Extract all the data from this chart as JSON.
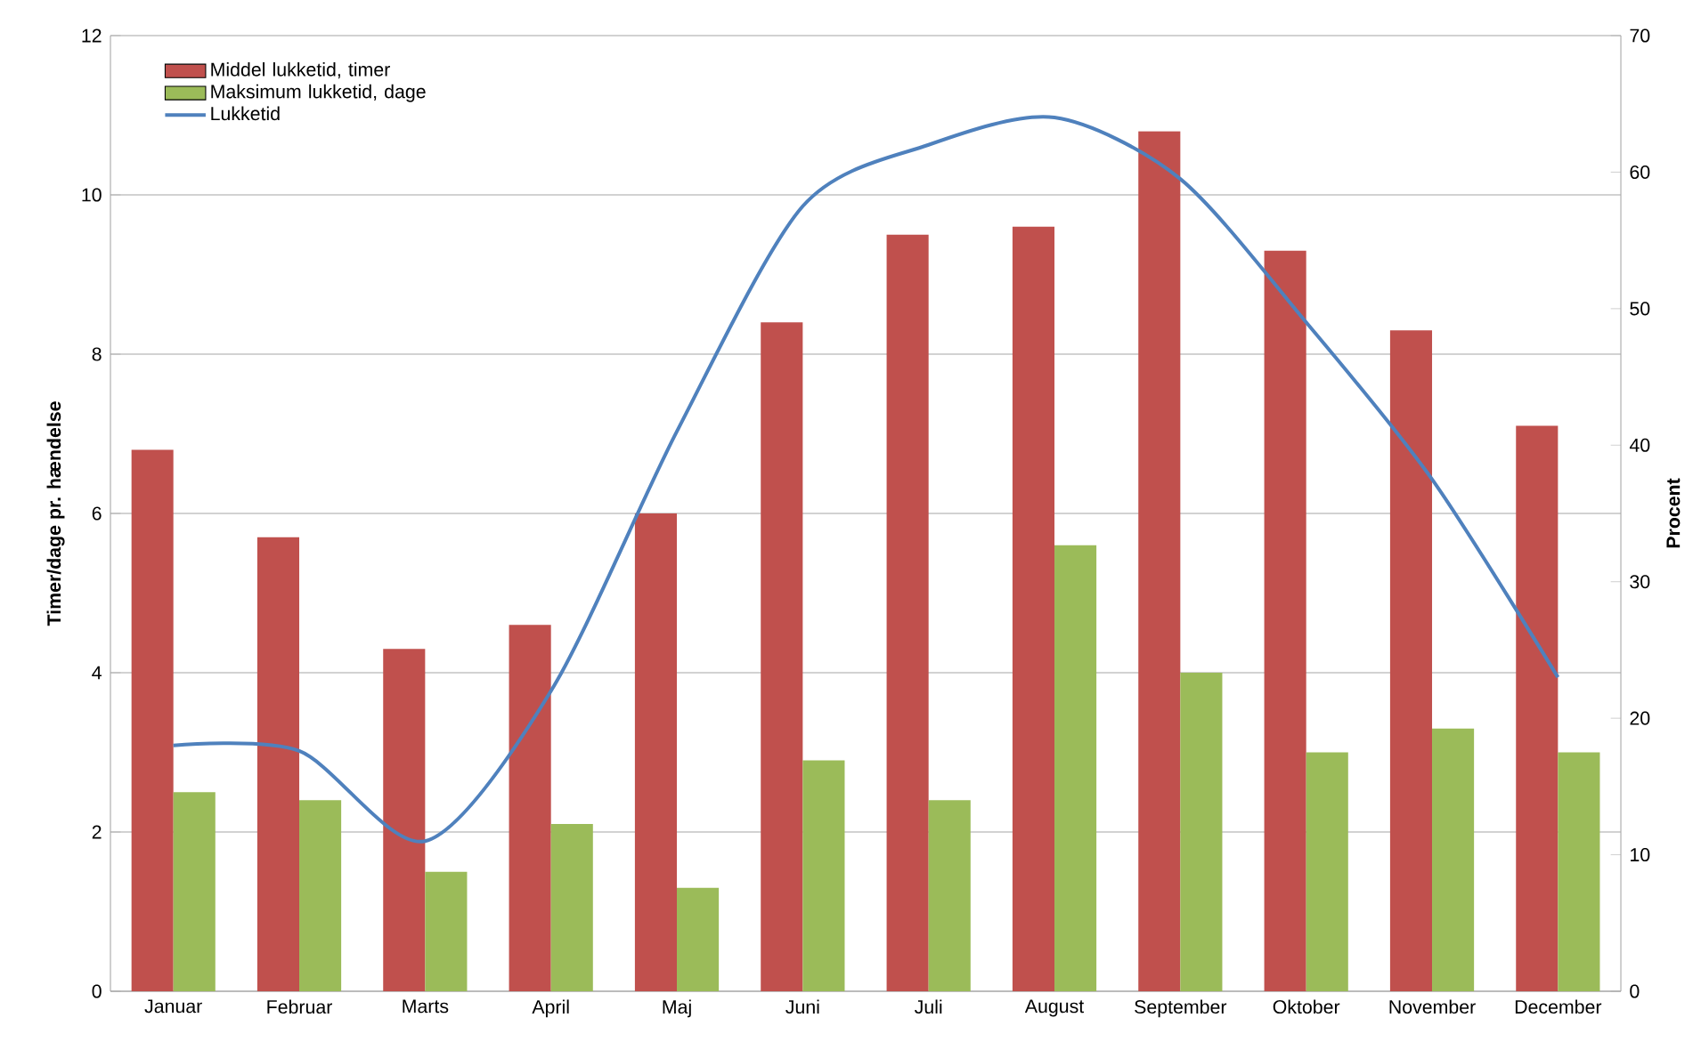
{
  "chart_data": {
    "type": "bar",
    "ylabel": "Timer/dage pr. hændelse",
    "y2label": "Procent",
    "categories": [
      "Januar",
      "Februar",
      "Marts",
      "April",
      "Maj",
      "Juni",
      "Juli",
      "August",
      "September",
      "Oktober",
      "November",
      "December"
    ],
    "series": [
      {
        "name": "Middel lukketid, timer",
        "color": "#c0504d",
        "values": [
          6.8,
          5.7,
          4.3,
          4.6,
          6.0,
          8.4,
          9.5,
          9.6,
          10.8,
          9.3,
          8.3,
          7.1
        ]
      },
      {
        "name": "Maksimum lukketid, dage",
        "color": "#9bbb59",
        "values": [
          2.5,
          2.4,
          1.5,
          2.1,
          1.3,
          2.9,
          2.4,
          5.6,
          4.0,
          3.0,
          3.3,
          3.0
        ]
      },
      {
        "name": "Lukketid",
        "type": "line",
        "axis": "y2",
        "color": "#4f81bd",
        "line_style": "solid",
        "values": [
          18,
          17.6,
          11,
          22,
          41,
          57.5,
          62,
          64,
          59.5,
          49,
          37.5,
          23
        ]
      }
    ],
    "ylim": [
      0,
      12
    ],
    "yticks": [
      0,
      2,
      4,
      6,
      8,
      10,
      12
    ],
    "y2lim": [
      0,
      70
    ],
    "y2ticks": [
      0,
      10,
      20,
      30,
      40,
      50,
      60,
      70
    ],
    "grid": "y",
    "legend": "top left"
  }
}
